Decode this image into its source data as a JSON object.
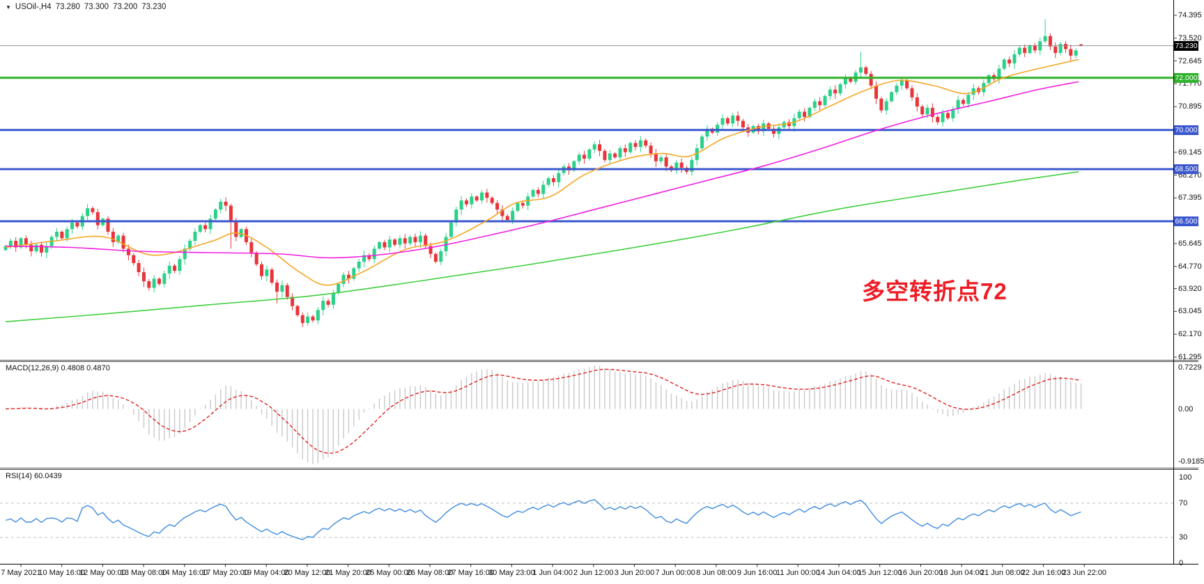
{
  "header": {
    "collapse_icon": "▼",
    "symbol_period": "USOil-,H4",
    "open": "73.280",
    "high": "73.300",
    "low": "73.200",
    "close": "73.230"
  },
  "annotation": {
    "text": "多空转折点72",
    "color": "#ee1c25"
  },
  "colors": {
    "background": "#ffffff",
    "candle_up": "#2bd089",
    "candle_down": "#e8353a",
    "level_blue": "#3a57cf",
    "level_green": "#2eb229",
    "current_price_line": "#8a9296",
    "current_price_tag_bg": "#000000",
    "ma_fast": "#f5a623",
    "ma_mid": "#f21de0",
    "ma_slow": "#3ecf3e",
    "macd_histogram": "#c9c9c9",
    "macd_signal": "#e02020",
    "rsi_line": "#3f8cdd",
    "rsi_guides": "#bdbdbd",
    "axis_line": "#000000",
    "text": "#111111"
  },
  "chart_data": {
    "type": "candlestick",
    "symbol": "USOil",
    "timeframe": "H4",
    "x_axis": {
      "labels": [
        "7 May 2021",
        "10 May 16:00",
        "12 May 00:00",
        "13 May 08:00",
        "14 May 16:00",
        "17 May 20:00",
        "19 May 04:00",
        "20 May 12:00",
        "21 May 20:00",
        "25 May 00:00",
        "26 May 08:00",
        "27 May 16:00",
        "30 May 23:00",
        "1 Jun 04:00",
        "2 Jun 12:00",
        "3 Jun 20:00",
        "7 Jun 00:00",
        "8 Jun 08:00",
        "9 Jun 16:00",
        "11 Jun 00:00",
        "14 Jun 04:00",
        "15 Jun 12:00",
        "16 Jun 20:00",
        "18 Jun 04:00",
        "21 Jun 08:00",
        "22 Jun 16:00",
        "23 Jun 22:00"
      ]
    },
    "price_axis": {
      "ticks": [
        "74.395",
        "73.520",
        "72.645",
        "71.770",
        "70.895",
        "69.145",
        "68.270",
        "67.395",
        "65.645",
        "64.770",
        "63.920",
        "63.045",
        "62.170",
        "61.295"
      ],
      "tags": [
        {
          "label": "73.230",
          "type": "current-price",
          "bg": "#000000"
        },
        {
          "label": "72.000",
          "type": "level",
          "bg": "#2eb229"
        },
        {
          "label": "70.000",
          "type": "level",
          "bg": "#3a57cf"
        },
        {
          "label": "68.500",
          "type": "level",
          "bg": "#3a57cf"
        },
        {
          "label": "66.500",
          "type": "level",
          "bg": "#3a57cf"
        }
      ]
    },
    "levels": [
      {
        "price": 73.23,
        "color": "#8a9296",
        "width": 1
      },
      {
        "price": 72.0,
        "color": "#2eb229",
        "width": 3
      },
      {
        "price": 70.0,
        "color": "#3a57cf",
        "width": 3
      },
      {
        "price": 68.5,
        "color": "#3a57cf",
        "width": 3
      },
      {
        "price": 66.5,
        "color": "#3a57cf",
        "width": 3
      }
    ],
    "candles": {
      "first_open": 65.4,
      "closes": [
        65.55,
        65.75,
        65.5,
        65.85,
        65.6,
        65.35,
        65.6,
        65.3,
        65.55,
        65.9,
        66.1,
        65.85,
        66.2,
        66.45,
        66.3,
        66.7,
        67.0,
        66.85,
        66.35,
        66.6,
        66.1,
        65.7,
        65.95,
        65.45,
        65.2,
        64.9,
        64.55,
        64.2,
        63.95,
        64.3,
        64.1,
        64.5,
        64.8,
        64.6,
        65.05,
        65.45,
        65.75,
        66.1,
        66.35,
        66.2,
        66.6,
        66.95,
        67.25,
        67.1,
        66.5,
        65.9,
        66.2,
        65.7,
        65.3,
        64.85,
        64.4,
        64.65,
        64.15,
        63.8,
        64.05,
        63.6,
        63.25,
        62.9,
        62.6,
        62.85,
        62.7,
        63.1,
        63.45,
        63.3,
        63.75,
        64.1,
        64.45,
        64.3,
        64.7,
        64.95,
        65.2,
        65.05,
        65.45,
        65.7,
        65.5,
        65.8,
        65.6,
        65.85,
        65.65,
        65.9,
        65.7,
        65.95,
        65.55,
        65.25,
        64.95,
        65.35,
        65.9,
        66.45,
        66.95,
        67.3,
        67.15,
        67.45,
        67.3,
        67.6,
        67.4,
        67.2,
        66.95,
        66.7,
        66.55,
        66.9,
        67.2,
        67.1,
        67.45,
        67.7,
        67.55,
        67.9,
        68.15,
        68.0,
        68.35,
        68.6,
        68.45,
        68.8,
        69.05,
        68.9,
        69.25,
        69.45,
        69.2,
        68.85,
        69.1,
        68.95,
        69.3,
        69.15,
        69.5,
        69.35,
        69.6,
        69.4,
        69.1,
        68.8,
        68.95,
        68.6,
        68.45,
        68.75,
        68.55,
        68.4,
        68.85,
        69.3,
        69.75,
        70.05,
        69.9,
        70.2,
        70.45,
        70.25,
        70.55,
        70.35,
        70.1,
        69.9,
        70.15,
        69.95,
        70.25,
        70.05,
        69.85,
        70.1,
        70.3,
        70.15,
        70.45,
        70.7,
        70.5,
        70.85,
        71.1,
        70.95,
        71.3,
        71.55,
        71.4,
        71.75,
        72.0,
        71.85,
        72.2,
        72.4,
        72.15,
        71.7,
        71.2,
        70.75,
        71.1,
        71.45,
        71.7,
        71.9,
        71.6,
        71.25,
        70.9,
        70.6,
        70.85,
        70.5,
        70.3,
        70.65,
        70.45,
        70.8,
        71.15,
        71.0,
        71.35,
        71.6,
        71.45,
        71.8,
        72.1,
        71.95,
        72.35,
        72.7,
        72.55,
        72.9,
        73.15,
        72.95,
        73.25,
        73.05,
        73.4,
        73.6,
        73.2,
        72.95,
        73.3,
        73.1,
        72.85,
        73.05,
        73.23
      ],
      "overrides": {
        "44": {
          "low": 65.45
        },
        "53": {
          "low": 63.35
        },
        "58": {
          "low": 62.45
        },
        "59": {
          "low": 62.5
        },
        "167": {
          "high": 73.0
        },
        "203": {
          "high": 74.25
        },
        "210": {
          "open": 73.28,
          "high": 73.3,
          "low": 73.2
        }
      }
    },
    "moving_averages": [
      {
        "name": "fast-ma",
        "color": "#f5a623",
        "points": [
          [
            8,
            65.5
          ],
          [
            80,
            65.75
          ],
          [
            150,
            65.9
          ],
          [
            220,
            65.2
          ],
          [
            300,
            65.7
          ],
          [
            340,
            66.05
          ],
          [
            380,
            65.55
          ],
          [
            430,
            64.55
          ],
          [
            470,
            64.05
          ],
          [
            520,
            64.55
          ],
          [
            580,
            65.4
          ],
          [
            640,
            65.75
          ],
          [
            700,
            66.55
          ],
          [
            740,
            67.2
          ],
          [
            790,
            67.45
          ],
          [
            840,
            68.3
          ],
          [
            900,
            68.9
          ],
          [
            950,
            69.1
          ],
          [
            990,
            69.0
          ],
          [
            1040,
            69.7
          ],
          [
            1090,
            70.1
          ],
          [
            1140,
            70.3
          ],
          [
            1190,
            70.9
          ],
          [
            1240,
            71.5
          ],
          [
            1290,
            71.9
          ],
          [
            1340,
            71.7
          ],
          [
            1390,
            71.4
          ],
          [
            1440,
            72.0
          ],
          [
            1490,
            72.35
          ],
          [
            1548,
            72.7
          ]
        ]
      },
      {
        "name": "mid-ma",
        "color": "#f21de0",
        "points": [
          [
            8,
            65.55
          ],
          [
            100,
            65.5
          ],
          [
            200,
            65.35
          ],
          [
            300,
            65.3
          ],
          [
            400,
            65.25
          ],
          [
            470,
            65.1
          ],
          [
            540,
            65.2
          ],
          [
            620,
            65.5
          ],
          [
            700,
            65.95
          ],
          [
            780,
            66.45
          ],
          [
            860,
            67.0
          ],
          [
            940,
            67.55
          ],
          [
            1020,
            68.1
          ],
          [
            1100,
            68.65
          ],
          [
            1180,
            69.3
          ],
          [
            1260,
            70.0
          ],
          [
            1340,
            70.6
          ],
          [
            1420,
            71.1
          ],
          [
            1490,
            71.55
          ],
          [
            1548,
            71.85
          ]
        ]
      },
      {
        "name": "slow-ma",
        "color": "#3ecf3e",
        "points": [
          [
            8,
            62.65
          ],
          [
            150,
            62.95
          ],
          [
            300,
            63.3
          ],
          [
            450,
            63.65
          ],
          [
            600,
            64.2
          ],
          [
            750,
            64.8
          ],
          [
            900,
            65.45
          ],
          [
            1050,
            66.15
          ],
          [
            1200,
            66.95
          ],
          [
            1350,
            67.6
          ],
          [
            1470,
            68.1
          ],
          [
            1548,
            68.4
          ]
        ]
      }
    ],
    "macd": {
      "label": "MACD(12,26,9) 0.4808 0.4870",
      "params": [
        12,
        26,
        9
      ],
      "current_macd": 0.4808,
      "current_signal": 0.487,
      "scale_ticks": [
        "0.7229",
        "0.00",
        "-0.9185"
      ],
      "scale_range": [
        -0.9185,
        0.7229
      ]
    },
    "rsi": {
      "label": "RSI(14) 60.0439",
      "period": 14,
      "current_value": 60.0439,
      "scale_ticks": [
        "100",
        "70",
        "30",
        "0"
      ],
      "guide_levels": [
        70,
        30
      ],
      "scale_range": [
        0,
        100
      ]
    }
  }
}
